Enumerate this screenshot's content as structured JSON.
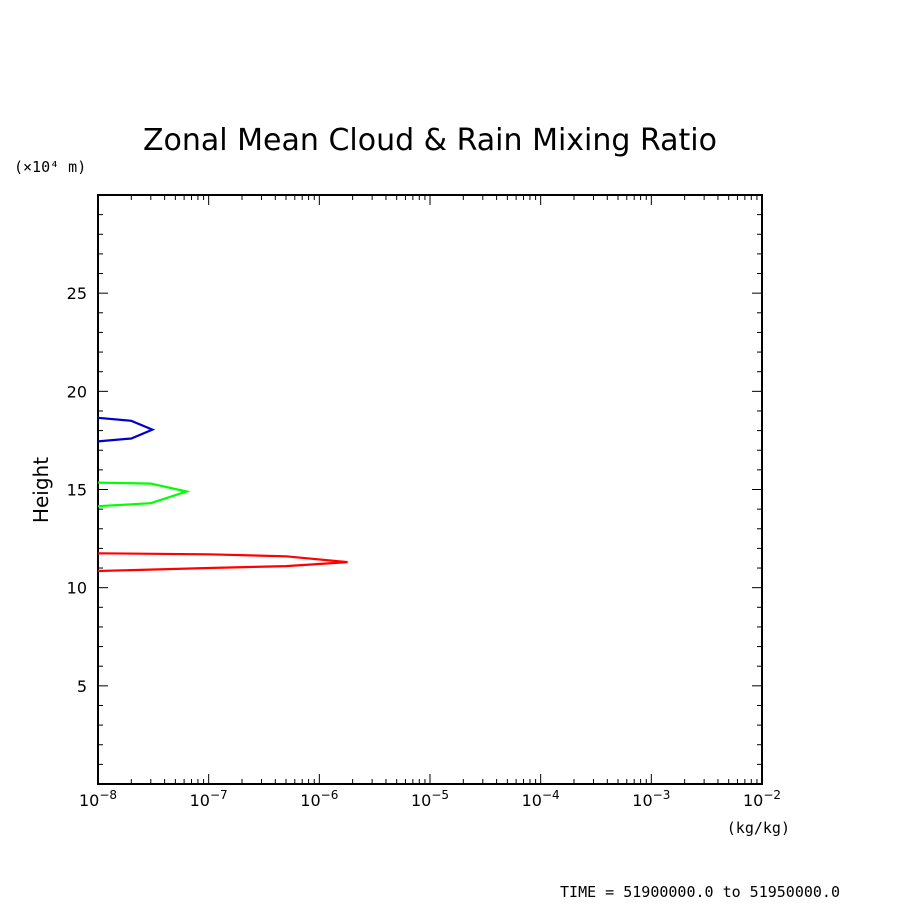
{
  "chart_data": {
    "type": "line",
    "title": "Zonal Mean Cloud & Rain Mixing Ratio",
    "ylabel": "Height",
    "y_unit": "(×10⁴ m)",
    "x_unit": "(kg/kg)",
    "footer": "TIME = 51900000.0 to 51950000.0",
    "x_scale": "log",
    "xlim": [
      1e-08,
      0.01
    ],
    "ylim": [
      0,
      30
    ],
    "x_ticks": [
      {
        "value": 1e-08,
        "base": "10",
        "exp": "−8"
      },
      {
        "value": 1e-07,
        "base": "10",
        "exp": "−7"
      },
      {
        "value": 1e-06,
        "base": "10",
        "exp": "−6"
      },
      {
        "value": 1e-05,
        "base": "10",
        "exp": "−5"
      },
      {
        "value": 0.0001,
        "base": "10",
        "exp": "−4"
      },
      {
        "value": 0.001,
        "base": "10",
        "exp": "−3"
      },
      {
        "value": 0.01,
        "base": "10",
        "exp": "−2"
      }
    ],
    "y_ticks": [
      "5",
      "10",
      "15",
      "20",
      "25"
    ],
    "series": [
      {
        "color": "#ff0000",
        "points": [
          [
            1e-08,
            11.75
          ],
          [
            1e-07,
            11.7
          ],
          [
            5e-07,
            11.6
          ],
          [
            1.8e-06,
            11.3
          ],
          [
            5e-07,
            11.1
          ],
          [
            1e-07,
            11.0
          ],
          [
            1e-08,
            10.85
          ]
        ]
      },
      {
        "color": "#00ff00",
        "points": [
          [
            1e-08,
            15.35
          ],
          [
            3e-08,
            15.3
          ],
          [
            6.3e-08,
            14.9
          ],
          [
            3e-08,
            14.3
          ],
          [
            1e-08,
            14.15
          ]
        ]
      },
      {
        "color": "#0000cc",
        "points": [
          [
            1e-08,
            18.65
          ],
          [
            2e-08,
            18.5
          ],
          [
            3.1e-08,
            18.05
          ],
          [
            2e-08,
            17.6
          ],
          [
            1e-08,
            17.45
          ]
        ]
      }
    ]
  }
}
